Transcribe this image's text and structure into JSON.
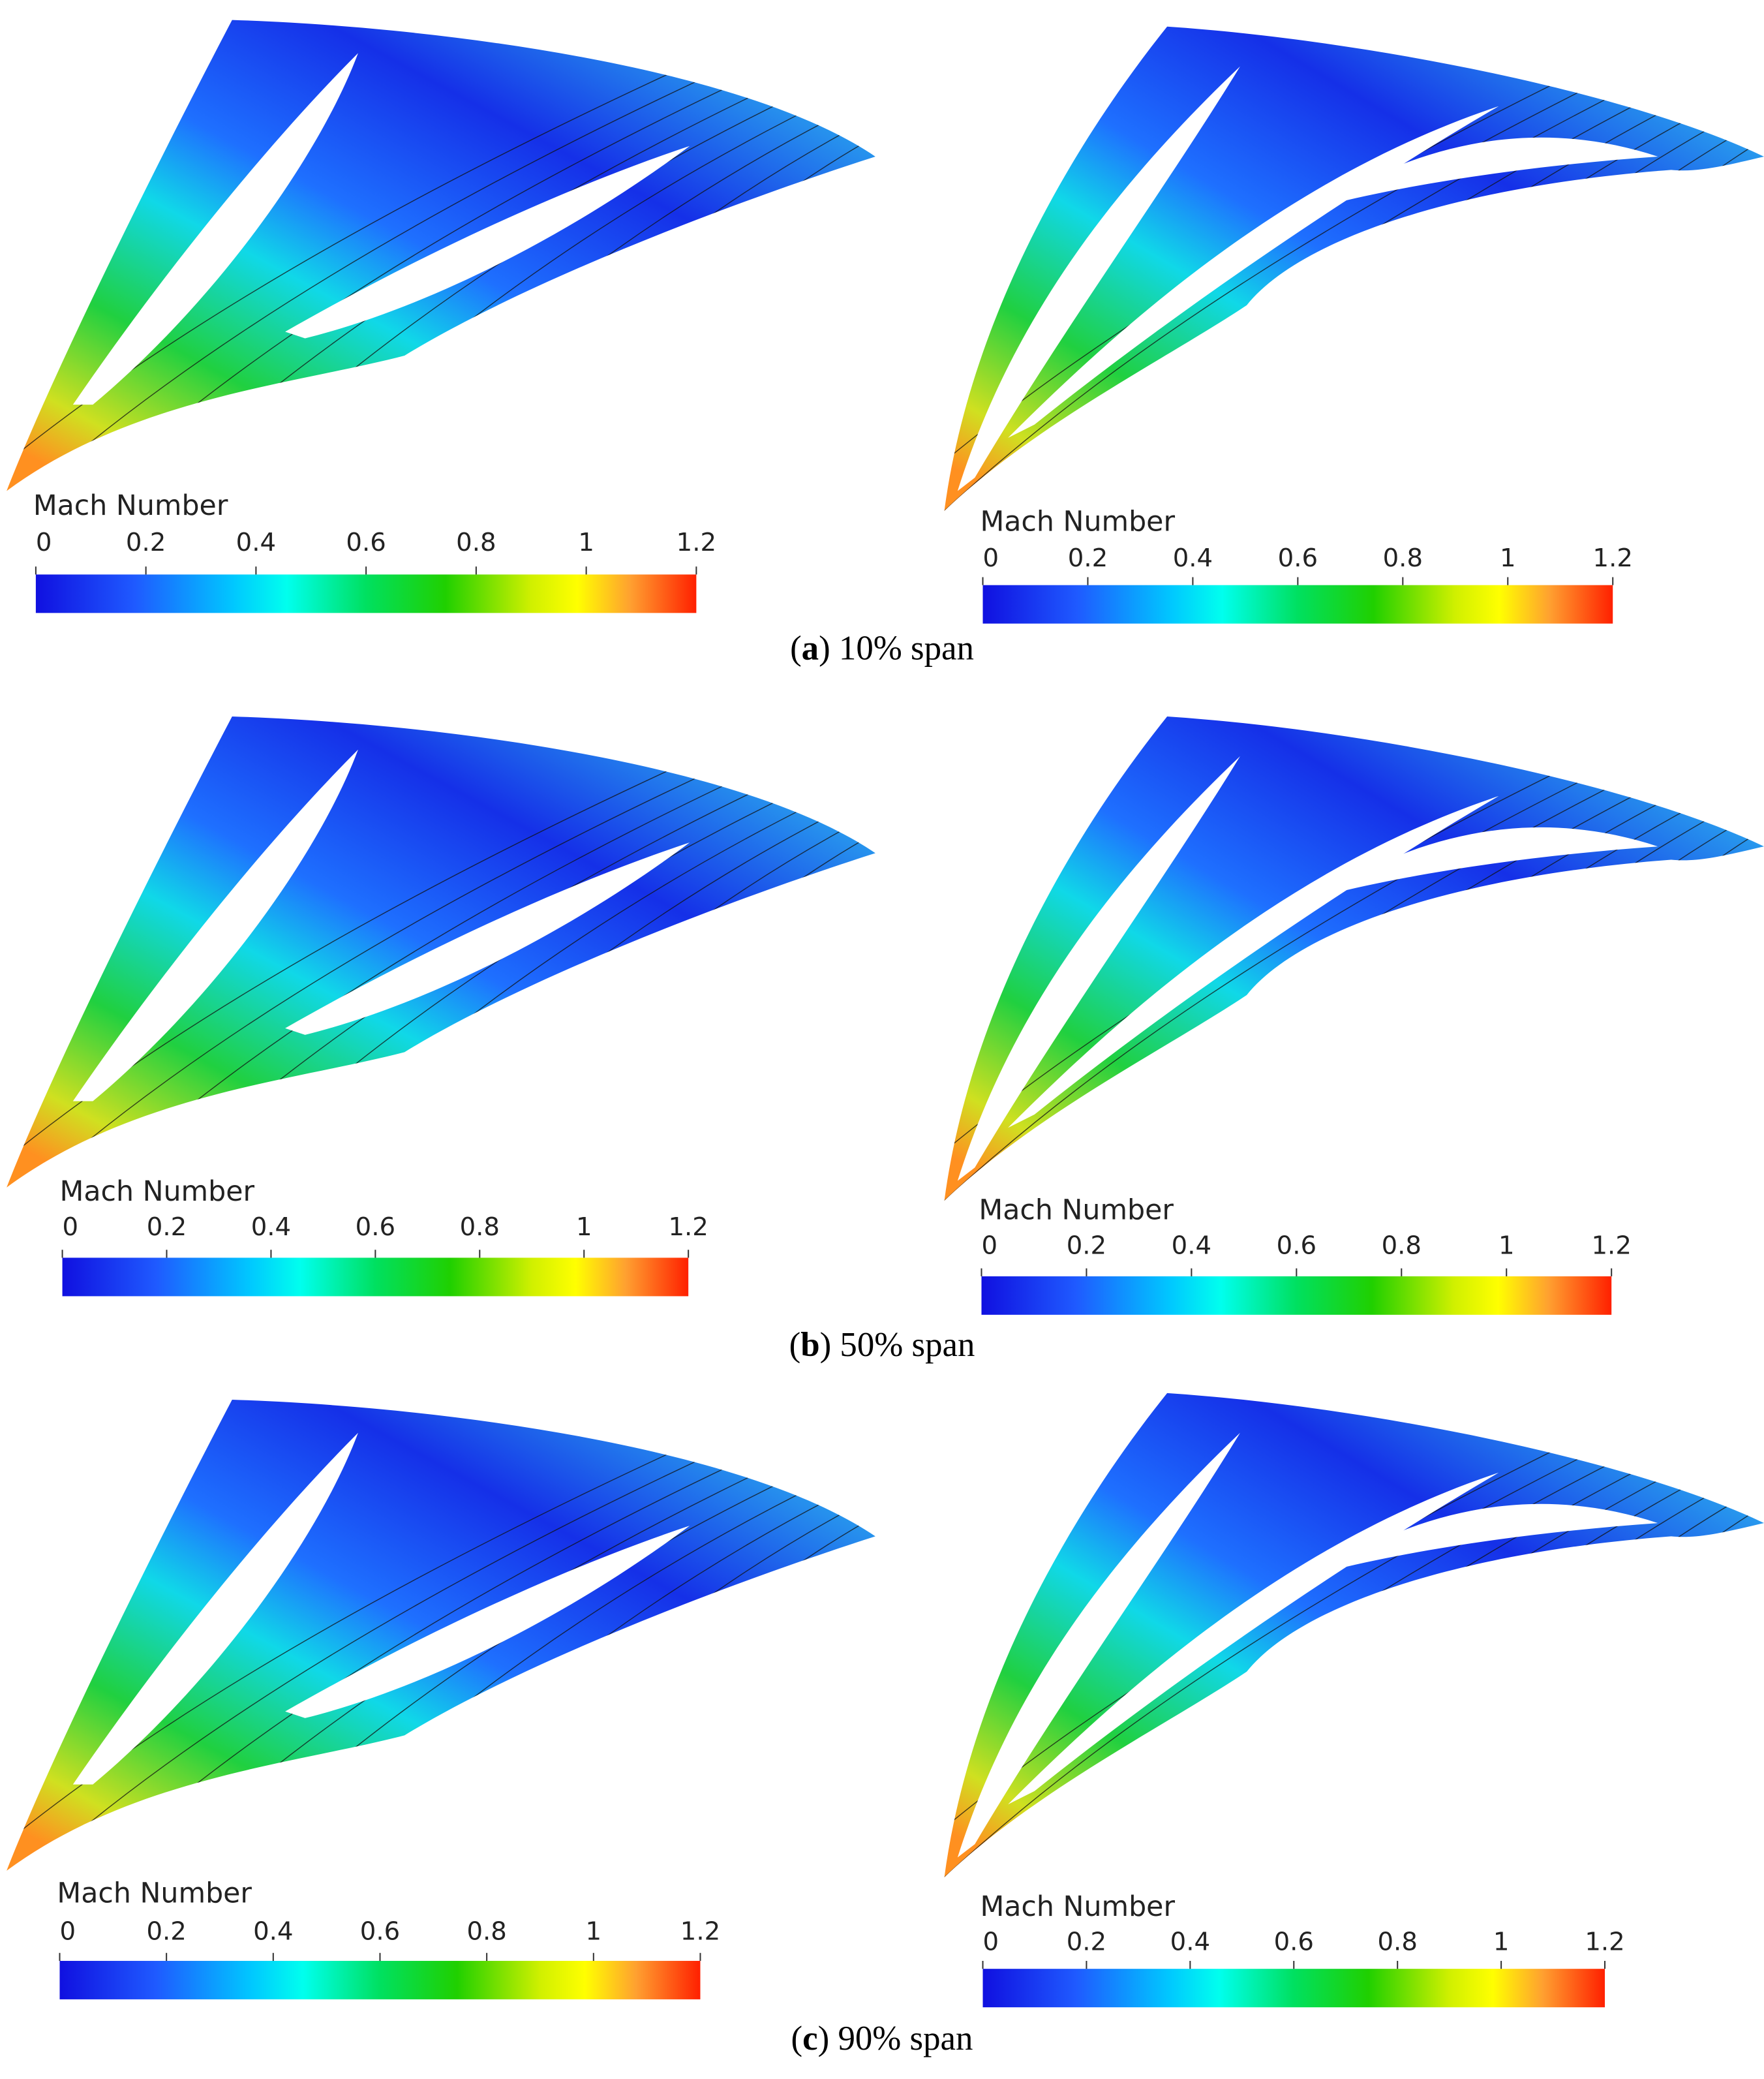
{
  "colorbar": {
    "title": "Mach Number",
    "range": [
      0,
      1.2
    ],
    "ticks": [
      0,
      0.2,
      0.4,
      0.6,
      0.8,
      1,
      1.2
    ]
  },
  "panels": [
    {
      "caption": [
        "(",
        "a",
        ") 10% span"
      ]
    },
    {
      "caption": [
        "(",
        "b",
        ") 50% span"
      ]
    },
    {
      "caption": [
        "(",
        "c",
        ") 90% span"
      ]
    }
  ]
}
